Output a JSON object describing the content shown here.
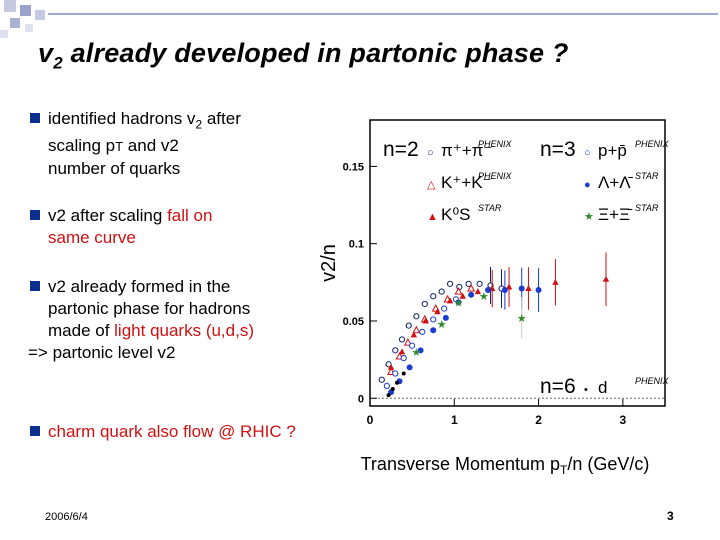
{
  "slide": {
    "title_main": "v",
    "title_sub": "2",
    "title_rest": " already developed in partonic phase ?",
    "date": "2006/6/4",
    "page_number": "3"
  },
  "bullets": {
    "b1_pre": "identified hadrons v",
    "b1_sub": "2",
    "b1_post": " after",
    "b1_line2": "scaling p",
    "b1_line2_T": "T",
    "b1_line2_rest": " and v2",
    "b1_line3": "number of quarks",
    "b2_pre": "v2 after scaling ",
    "b2_red": "fall on",
    "b2_line2": "same curve",
    "b3_line1": "v2 already formed in the",
    "b3_line2": "partonic phase for hadrons",
    "b3_line3_pre": "made of ",
    "b3_line3_red": "light quarks (u,d,s)",
    "b3_line4": "=> partonic level v2",
    "b4": "charm quark also flow @ RHIC ?"
  },
  "colors": {
    "bullet": "#0c2f8f",
    "red": "#d01010",
    "navy": "#0b1f6b",
    "green": "#2e8b2e"
  },
  "chart_data": {
    "type": "scatter",
    "xlabel_pre": "Transverse Momentum p",
    "xlabel_T": "T",
    "xlabel_post": "/n (GeV/c)",
    "ylabel": "v2/n",
    "xlim": [
      0,
      3.5
    ],
    "ylim": [
      -0.005,
      0.18
    ],
    "xticks": [
      "0",
      "1",
      "2",
      "3"
    ],
    "yticks": [
      "0",
      "0.05",
      "0.1",
      "0.15"
    ],
    "legend": [
      {
        "n": "n=2",
        "marker": "○",
        "label": "π⁺+π⁻",
        "source": "PHENIX",
        "color": "#0b1f6b"
      },
      {
        "n": "",
        "marker": "△",
        "label": "K⁺+K⁻",
        "source": "PHENIX",
        "color": "#d01010"
      },
      {
        "n": "",
        "marker": "▲",
        "label": "K⁰S",
        "source": "STAR",
        "color": "#d01010"
      },
      {
        "n": "n=3",
        "marker": "○",
        "label": "p+p̄",
        "source": "PHENIX",
        "color": "#1a3ccf"
      },
      {
        "n": "",
        "marker": "●",
        "label": "Λ+Λ̄",
        "source": "STAR",
        "color": "#1a3ccf"
      },
      {
        "n": "",
        "marker": "★",
        "label": "Ξ+Ξ̄",
        "source": "STAR",
        "color": "#2e8b2e"
      },
      {
        "n": "n=6",
        "marker": "•",
        "label": "d",
        "source": "PHENIX",
        "color": "#000000"
      }
    ],
    "series": [
      {
        "name": "pion",
        "marker": "circle-open",
        "color": "#0b1f6b",
        "x": [
          0.14,
          0.22,
          0.3,
          0.38,
          0.46,
          0.55,
          0.65,
          0.75,
          0.85,
          0.95,
          1.06,
          1.17,
          1.3,
          1.43,
          1.56
        ],
        "y": [
          0.012,
          0.022,
          0.031,
          0.038,
          0.047,
          0.053,
          0.061,
          0.066,
          0.069,
          0.074,
          0.072,
          0.074,
          0.074,
          0.073,
          0.071
        ]
      },
      {
        "name": "kaon",
        "marker": "triangle-open",
        "color": "#d01010",
        "x": [
          0.25,
          0.35,
          0.45,
          0.55,
          0.65,
          0.78,
          0.92,
          1.05,
          1.2
        ],
        "y": [
          0.017,
          0.027,
          0.036,
          0.044,
          0.051,
          0.058,
          0.064,
          0.069,
          0.071
        ]
      },
      {
        "name": "k0s",
        "marker": "triangle-filled",
        "color": "#d01010",
        "x": [
          0.25,
          0.38,
          0.52,
          0.66,
          0.8,
          0.95,
          1.1,
          1.28,
          1.45,
          1.65,
          1.88,
          2.2,
          2.8
        ],
        "y": [
          0.02,
          0.03,
          0.041,
          0.05,
          0.056,
          0.063,
          0.066,
          0.069,
          0.071,
          0.072,
          0.071,
          0.075,
          0.077
        ]
      },
      {
        "name": "proton",
        "marker": "circle-open",
        "color": "#1a3ccf",
        "x": [
          0.2,
          0.3,
          0.4,
          0.5,
          0.62,
          0.75,
          0.88,
          1.02
        ],
        "y": [
          0.008,
          0.016,
          0.026,
          0.034,
          0.043,
          0.051,
          0.058,
          0.064
        ]
      },
      {
        "name": "lambda",
        "marker": "circle-filled",
        "color": "#1a3ccf",
        "x": [
          0.25,
          0.35,
          0.47,
          0.6,
          0.75,
          0.9,
          1.05,
          1.2,
          1.4,
          1.6,
          1.8,
          2.0
        ],
        "y": [
          0.004,
          0.011,
          0.02,
          0.031,
          0.044,
          0.052,
          0.062,
          0.067,
          0.07,
          0.07,
          0.071,
          0.07
        ]
      },
      {
        "name": "xi",
        "marker": "star",
        "color": "#2e8b2e",
        "x": [
          0.55,
          0.85,
          1.05,
          1.35,
          1.8
        ],
        "y": [
          0.03,
          0.048,
          0.062,
          0.066,
          0.052
        ]
      },
      {
        "name": "deuteron",
        "marker": "dot",
        "color": "#000000",
        "x": [
          0.22,
          0.27,
          0.32,
          0.4
        ],
        "y": [
          0.002,
          0.006,
          0.01,
          0.016
        ]
      }
    ]
  }
}
